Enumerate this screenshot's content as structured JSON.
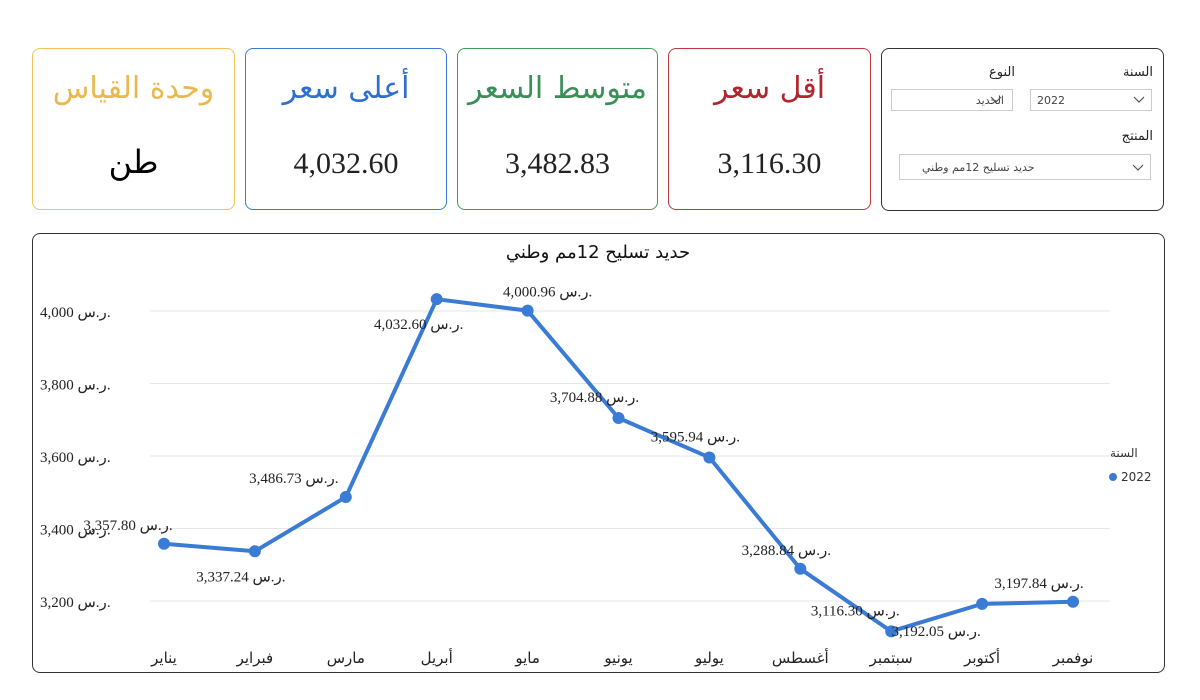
{
  "cards": {
    "unit": {
      "title": "وحدة القياس",
      "value": "طن"
    },
    "max": {
      "title": "أعلى سعر",
      "value": "4,032.60"
    },
    "avg": {
      "title": "متوسط السعر",
      "value": "3,482.83"
    },
    "min": {
      "title": "أقل سعر",
      "value": "3,116.30"
    }
  },
  "filters": {
    "year_label": "السنة",
    "year_value": "2022",
    "type_label": "النوع",
    "type_value": "الحديد",
    "product_label": "المنتج",
    "product_value": "حديد تسليح 12مم وطني"
  },
  "colors": {
    "series": "#3a7bd5"
  },
  "chart_data": {
    "type": "line",
    "title": "حديد تسليح 12مم وطني",
    "categories": [
      "يناير",
      "فبراير",
      "مارس",
      "أبريل",
      "مايو",
      "يونيو",
      "يوليو",
      "أغسطس",
      "سبتمبر",
      "أكتوبر",
      "نوفمبر"
    ],
    "series": [
      {
        "name": "2022",
        "values": [
          3357.8,
          3337.24,
          3486.73,
          4032.6,
          4000.96,
          3704.88,
          3595.94,
          3288.84,
          3116.3,
          3192.05,
          3197.84
        ]
      }
    ],
    "data_labels": [
      "3,357.80 ر.س.",
      "3,337.24 ر.س.",
      "3,486.73 ر.س.",
      "4,032.60 ر.س.",
      "4,000.96 ر.س.",
      "3,704.88 ر.س.",
      "3,595.94 ر.س.",
      "3,288.84 ر.س.",
      "3,116.30 ر.س.",
      "3,192.05 ر.س.",
      "3,197.84 ر.س."
    ],
    "y_ticks": [
      3200,
      3400,
      3600,
      3800,
      4000
    ],
    "y_tick_labels": [
      "3,200 ر.س.",
      "3,400 ر.س.",
      "3,600 ر.س.",
      "3,800 ر.س.",
      "4,000 ر.س."
    ],
    "ylim": [
      3100,
      4060
    ],
    "grid": true,
    "legend": {
      "title": "السنة",
      "placement": "right"
    }
  }
}
